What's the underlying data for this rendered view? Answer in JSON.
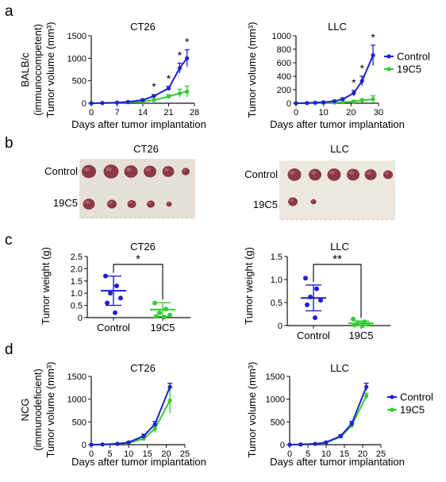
{
  "colors": {
    "control": "#1f1fd6",
    "treated": "#33cc33",
    "axis": "#111111"
  },
  "panel_labels": [
    "a",
    "b",
    "c",
    "d"
  ],
  "panel_a": {
    "ylabel_lines": [
      "BALB/c",
      "(immunocompetent)",
      "Tumor volume (mm³)"
    ],
    "ylabel_right": "Tumor volume (mm³)",
    "xlabel": "Days after tumor implantation"
  },
  "panel_b": {
    "left_title": "CT26",
    "right_title": "LLC",
    "row_labels": [
      "Control",
      "19C5"
    ]
  },
  "panel_c": {
    "ylabel": "Tumor weight (g)"
  },
  "panel_d": {
    "ylabel_lines": [
      "NCG",
      "(immunodeficient)",
      "Tumor volume (mm³)"
    ],
    "ylabel_right": "Tumor volume (mm³)",
    "xlabel": "Days after tumor implantation"
  },
  "chart_data": [
    {
      "id": "a-ct26",
      "type": "line",
      "title": "CT26",
      "xlabel": "Days after tumor implantation",
      "ylabel": "Tumor volume (mm³)",
      "xlim": [
        0,
        28
      ],
      "ylim": [
        0,
        1500
      ],
      "xticks": [
        0,
        7,
        14,
        21,
        28
      ],
      "yticks": [
        0,
        500,
        1000,
        1500
      ],
      "x": [
        0,
        3,
        7,
        10,
        14,
        17,
        21,
        24,
        26
      ],
      "series": [
        {
          "name": "Control",
          "values": [
            0,
            5,
            15,
            30,
            70,
            160,
            330,
            780,
            1000
          ],
          "err": [
            0,
            3,
            6,
            10,
            20,
            30,
            45,
            110,
            190
          ]
        },
        {
          "name": "19C5",
          "values": [
            0,
            4,
            10,
            20,
            40,
            70,
            150,
            220,
            260
          ],
          "err": [
            0,
            2,
            5,
            8,
            12,
            20,
            40,
            90,
            120
          ]
        }
      ],
      "significance": [
        {
          "x": 17,
          "label": "*"
        },
        {
          "x": 21,
          "label": "*"
        },
        {
          "x": 24,
          "label": "*"
        },
        {
          "x": 26,
          "label": "*"
        }
      ]
    },
    {
      "id": "a-llc",
      "type": "line",
      "title": "LLC",
      "xlabel": "Days after tumor implantation",
      "ylabel": "Tumor volume (mm³)",
      "xlim": [
        0,
        30
      ],
      "ylim": [
        0,
        1000
      ],
      "xticks": [
        0,
        10,
        20,
        30
      ],
      "yticks": [
        0,
        200,
        400,
        600,
        800,
        1000
      ],
      "x": [
        0,
        4,
        7,
        10,
        14,
        17,
        21,
        24,
        28
      ],
      "series": [
        {
          "name": "Control",
          "values": [
            0,
            3,
            8,
            15,
            30,
            60,
            150,
            330,
            710
          ],
          "err": [
            0,
            2,
            4,
            8,
            12,
            20,
            40,
            70,
            150
          ]
        },
        {
          "name": "19C5",
          "values": [
            0,
            2,
            4,
            6,
            10,
            15,
            25,
            40,
            60
          ],
          "err": [
            0,
            1,
            2,
            3,
            5,
            8,
            15,
            25,
            50
          ]
        }
      ],
      "legend": "right",
      "significance": [
        {
          "x": 21,
          "label": "*"
        },
        {
          "x": 24,
          "label": "*"
        },
        {
          "x": 28,
          "label": "*"
        }
      ]
    },
    {
      "id": "c-ct26",
      "type": "scatter",
      "title": "CT26",
      "ylabel": "Tumor weight (g)",
      "categories": [
        "Control",
        "19C5"
      ],
      "ylim": [
        0,
        2.5
      ],
      "yticks": [
        0,
        0.5,
        1.0,
        1.5,
        2.0,
        2.5
      ],
      "ytick_labels": [
        "0",
        "0.5",
        "1.0",
        "1.5",
        "2.0",
        "2.5"
      ],
      "groups": [
        {
          "name": "Control",
          "points": [
            1.7,
            1.3,
            1.0,
            0.8,
            0.6,
            0.2
          ],
          "mean": 1.1,
          "sd": 0.6
        },
        {
          "name": "19C5",
          "points": [
            0.6,
            0.35,
            0.2,
            0.1,
            0.05,
            0.02
          ],
          "mean": 0.33,
          "sd": 0.28
        }
      ],
      "significance": "*"
    },
    {
      "id": "c-llc",
      "type": "scatter",
      "title": "LLC",
      "ylabel": "Tumor weight (g)",
      "categories": [
        "Control",
        "19C5"
      ],
      "ylim": [
        0,
        1.5
      ],
      "yticks": [
        0,
        0.5,
        1.0,
        1.5
      ],
      "ytick_labels": [
        "0",
        "0.5",
        "1.0",
        "1.5"
      ],
      "groups": [
        {
          "name": "Control",
          "points": [
            1.03,
            0.8,
            0.62,
            0.55,
            0.45,
            0.17
          ],
          "mean": 0.6,
          "sd": 0.28
        },
        {
          "name": "19C5",
          "points": [
            0.14,
            0.08,
            0.05,
            0.03,
            0.01,
            0.0
          ],
          "mean": 0.05,
          "sd": 0.05
        }
      ],
      "significance": "**"
    },
    {
      "id": "d-ct26",
      "type": "line",
      "title": "CT26",
      "xlabel": "Days after tumor implantation",
      "ylabel": "Tumor volume (mm³)",
      "xlim": [
        0,
        25
      ],
      "ylim": [
        0,
        1500
      ],
      "xticks": [
        0,
        5,
        10,
        15,
        20,
        25
      ],
      "yticks": [
        0,
        500,
        1000,
        1500
      ],
      "x": [
        0,
        3,
        7,
        10,
        14,
        17,
        21
      ],
      "series": [
        {
          "name": "Control",
          "values": [
            0,
            5,
            20,
            50,
            190,
            450,
            1270
          ],
          "err": [
            0,
            3,
            8,
            15,
            40,
            60,
            80
          ]
        },
        {
          "name": "19C5",
          "values": [
            0,
            4,
            15,
            40,
            130,
            350,
            970
          ],
          "err": [
            0,
            2,
            6,
            12,
            35,
            90,
            280
          ]
        }
      ]
    },
    {
      "id": "d-llc",
      "type": "line",
      "title": "LLC",
      "xlabel": "Days after tumor implantation",
      "ylabel": "Tumor volume (mm³)",
      "xlim": [
        0,
        25
      ],
      "ylim": [
        0,
        1500
      ],
      "xticks": [
        0,
        5,
        10,
        15,
        20,
        25
      ],
      "yticks": [
        0,
        500,
        1000,
        1500
      ],
      "x": [
        0,
        3,
        7,
        10,
        14,
        17,
        21
      ],
      "series": [
        {
          "name": "Control",
          "values": [
            0,
            5,
            20,
            50,
            190,
            460,
            1270
          ],
          "err": [
            0,
            3,
            8,
            15,
            30,
            50,
            80
          ]
        },
        {
          "name": "19C5",
          "values": [
            0,
            4,
            15,
            45,
            175,
            420,
            1070
          ],
          "err": [
            0,
            2,
            6,
            12,
            25,
            40,
            60
          ]
        }
      ],
      "legend": "right"
    }
  ]
}
